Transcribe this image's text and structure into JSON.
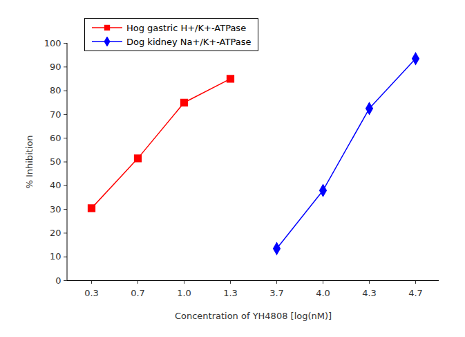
{
  "chart_data": {
    "type": "line",
    "categories": [
      "0.3",
      "0.7",
      "1.0",
      "1.3",
      "3.7",
      "4.0",
      "4.3",
      "4.7"
    ],
    "series": [
      {
        "name": "Hog gastric H+/K+-ATPase",
        "color": "#ff0000",
        "marker": "square",
        "values": [
          30.5,
          51.5,
          75,
          85,
          null,
          null,
          null,
          null
        ]
      },
      {
        "name": "Dog kidney Na+/K+-ATPase",
        "color": "#0000ff",
        "marker": "diamond",
        "values": [
          null,
          null,
          null,
          null,
          13.5,
          38,
          72.5,
          93.5
        ]
      }
    ],
    "x_label": "Concentration of YH4808 [log(nM)]",
    "y_label": "% Inhibition",
    "ylim": [
      0,
      100
    ],
    "yticks": [
      0,
      10,
      20,
      30,
      40,
      50,
      60,
      70,
      80,
      90,
      100
    ],
    "grid": false,
    "legend": "top-left"
  }
}
